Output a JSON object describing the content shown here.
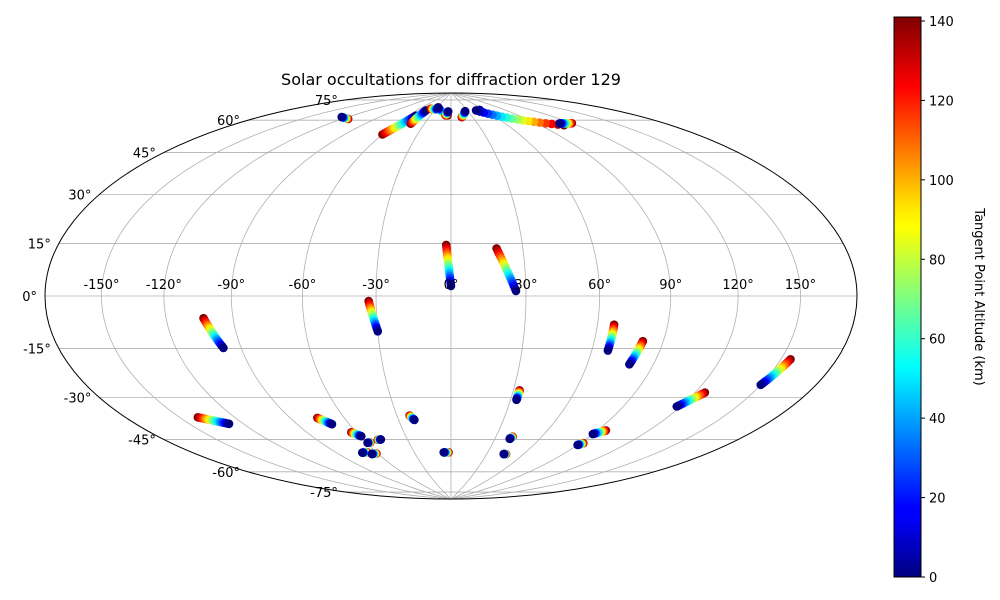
{
  "chart_data": {
    "type": "scatter",
    "projection": "hammer",
    "title": "Solar occultations for diffraction order 129",
    "xlabel": "",
    "ylabel": "",
    "grid": true,
    "xticks": [
      -150,
      -120,
      -90,
      -60,
      -30,
      0,
      30,
      60,
      90,
      120,
      150
    ],
    "xtick_labels": [
      "-150°",
      "-120°",
      "-90°",
      "-60°",
      "-30°",
      "0°",
      "30°",
      "60°",
      "90°",
      "120°",
      "150°"
    ],
    "yticks": [
      -75,
      -60,
      -45,
      -30,
      -15,
      0,
      15,
      30,
      45,
      60,
      75
    ],
    "ytick_labels": [
      "-75°",
      "-60°",
      "-45°",
      "-30°",
      "-15°",
      "0°",
      "15°",
      "30°",
      "45°",
      "60°",
      "75°"
    ],
    "colorbar": {
      "label": "Tangent Point Altitude (km)",
      "colormap": "jet",
      "range": [
        0,
        141
      ],
      "ticks": [
        0,
        20,
        40,
        60,
        80,
        100,
        120,
        140
      ],
      "tick_labels": [
        "0",
        "20",
        "40",
        "60",
        "80",
        "100",
        "120",
        "140"
      ]
    },
    "tracks": [
      {
        "start": [
          -2,
          20.5
        ],
        "end": [
          0,
          4
        ]
      },
      {
        "start": [
          19,
          19
        ],
        "end": [
          26,
          2
        ]
      },
      {
        "start": [
          -33,
          -2
        ],
        "end": [
          -30,
          -14
        ]
      },
      {
        "start": [
          -103,
          -8
        ],
        "end": [
          -98,
          -19
        ]
      },
      {
        "start": [
          67,
          -11
        ],
        "end": [
          67,
          -21
        ]
      },
      {
        "start": [
          81,
          -17
        ],
        "end": [
          79,
          -26
        ]
      },
      {
        "start": [
          155,
          -20
        ],
        "end": [
          150,
          -29
        ]
      },
      {
        "start": [
          125,
          -34
        ],
        "end": [
          118,
          -40
        ]
      },
      {
        "start": [
          33,
          -38
        ],
        "end": [
          33,
          -42
        ]
      },
      {
        "start": [
          -140,
          -42
        ],
        "end": [
          -128,
          -46
        ]
      },
      {
        "start": [
          -75,
          -48
        ],
        "end": [
          -70,
          -51
        ]
      },
      {
        "start": [
          -23,
          -49
        ],
        "end": [
          -21,
          -51
        ]
      },
      {
        "start": [
          -63,
          -55
        ],
        "end": [
          -59,
          -57
        ]
      },
      {
        "start": [
          95,
          -52
        ],
        "end": [
          90,
          -54
        ]
      },
      {
        "start": [
          92,
          -58
        ],
        "end": [
          90,
          -59
        ]
      },
      {
        "start": [
          41,
          -58
        ],
        "end": [
          40,
          -59
        ]
      },
      {
        "start": [
          -57,
          -60
        ],
        "end": [
          -59,
          -60
        ]
      },
      {
        "start": [
          -50,
          -59
        ],
        "end": [
          -48,
          -59
        ]
      },
      {
        "start": [
          -67,
          -64
        ],
        "end": [
          -71,
          -64
        ]
      },
      {
        "start": [
          -61,
          -65
        ],
        "end": [
          -65,
          -65
        ]
      },
      {
        "start": [
          -2,
          -66
        ],
        "end": [
          -6,
          -66
        ]
      },
      {
        "start": [
          46,
          -66
        ],
        "end": [
          44,
          -66
        ]
      },
      {
        "start": [
          -115,
          71
        ],
        "end": [
          -125,
          71
        ]
      },
      {
        "start": [
          -60,
          67
        ],
        "end": [
          -50,
          77
        ]
      },
      {
        "start": [
          -45,
          73
        ],
        "end": [
          -45,
          80
        ]
      },
      {
        "start": [
          -40,
          81
        ],
        "end": [
          -25,
          81
        ]
      },
      {
        "start": [
          -5,
          78
        ],
        "end": [
          -28,
          82
        ]
      },
      {
        "start": [
          -8,
          78
        ],
        "end": [
          -5,
          80
        ]
      },
      {
        "start": [
          15,
          77
        ],
        "end": [
          25,
          80
        ]
      },
      {
        "start": [
          50,
          80
        ],
        "end": [
          52,
          80
        ]
      },
      {
        "start": [
          110,
          68
        ],
        "end": [
          45,
          80
        ]
      },
      {
        "start": [
          120,
          68
        ],
        "end": [
          110,
          69
        ]
      }
    ]
  }
}
